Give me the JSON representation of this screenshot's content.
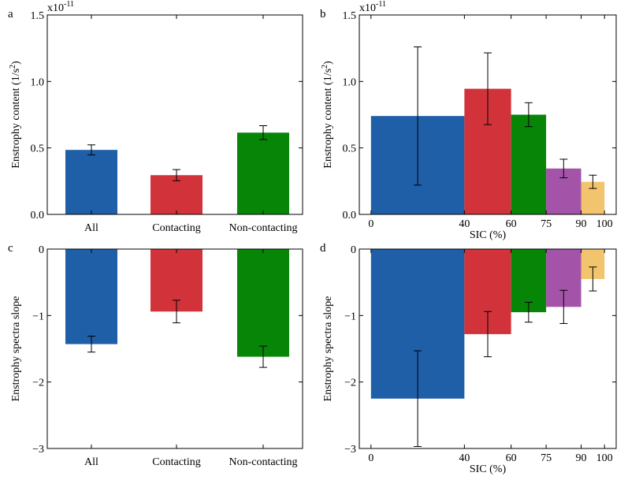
{
  "colors": {
    "blue": "#1f5fa8",
    "red": "#d2333a",
    "green": "#078507",
    "purple": "#a354a8",
    "orange": "#f2c46e"
  },
  "chart_data": [
    {
      "panel": "a",
      "type": "bar",
      "categories": [
        "All",
        "Contacting",
        "Non-contacting"
      ],
      "values": [
        0.485,
        0.295,
        0.615
      ],
      "errors": [
        0.038,
        0.042,
        0.052
      ],
      "colors": [
        "#1f5fa8",
        "#d2333a",
        "#078507"
      ],
      "ylabel_main": "Enstrophy content (1/s",
      "ylabel_sup": "2",
      "ylabel_end": ")",
      "y_multiplier_base": "x10",
      "y_multiplier_exp": "-11",
      "ylim": [
        0,
        1.5
      ],
      "yticks": [
        "0.0",
        "0.5",
        "1.0",
        "1.5"
      ]
    },
    {
      "panel": "b",
      "type": "bar",
      "xlabel": "SIC (%)",
      "bins": [
        [
          0,
          40
        ],
        [
          40,
          60
        ],
        [
          60,
          75
        ],
        [
          75,
          90
        ],
        [
          90,
          100
        ]
      ],
      "values": [
        0.74,
        0.945,
        0.75,
        0.345,
        0.245
      ],
      "errors": [
        0.52,
        0.27,
        0.09,
        0.07,
        0.05
      ],
      "colors": [
        "#1f5fa8",
        "#d2333a",
        "#078507",
        "#a354a8",
        "#f2c46e"
      ],
      "ylabel_main": "Enstrophy content (1/s",
      "ylabel_sup": "2",
      "ylabel_end": ")",
      "y_multiplier_base": "x10",
      "y_multiplier_exp": "-11",
      "xlim": [
        -5,
        105
      ],
      "ylim": [
        0,
        1.5
      ],
      "xticks": [
        "0",
        "40",
        "60",
        "75",
        "90",
        "100"
      ],
      "yticks": [
        "0.0",
        "0.5",
        "1.0",
        "1.5"
      ]
    },
    {
      "panel": "c",
      "type": "bar",
      "categories": [
        "All",
        "Contacting",
        "Non-contacting"
      ],
      "values": [
        -1.43,
        -0.94,
        -1.62
      ],
      "errors": [
        0.12,
        0.17,
        0.16
      ],
      "colors": [
        "#1f5fa8",
        "#d2333a",
        "#078507"
      ],
      "ylabel": "Enstrophy spectra slope",
      "ylim": [
        -3,
        0
      ],
      "yticks": [
        "0",
        "−1",
        "−2",
        "−3"
      ]
    },
    {
      "panel": "d",
      "type": "bar",
      "xlabel": "SIC (%)",
      "bins": [
        [
          0,
          40
        ],
        [
          40,
          60
        ],
        [
          60,
          75
        ],
        [
          75,
          90
        ],
        [
          90,
          100
        ]
      ],
      "values": [
        -2.25,
        -1.28,
        -0.95,
        -0.87,
        -0.45
      ],
      "errors": [
        0.72,
        0.34,
        0.15,
        0.25,
        0.18
      ],
      "colors": [
        "#1f5fa8",
        "#d2333a",
        "#078507",
        "#a354a8",
        "#f2c46e"
      ],
      "ylabel": "Enstrophy spectra slope",
      "xlim": [
        -5,
        105
      ],
      "ylim": [
        -3,
        0
      ],
      "xticks": [
        "0",
        "40",
        "60",
        "75",
        "90",
        "100"
      ],
      "yticks": [
        "0",
        "−1",
        "−2",
        "−3"
      ]
    }
  ]
}
